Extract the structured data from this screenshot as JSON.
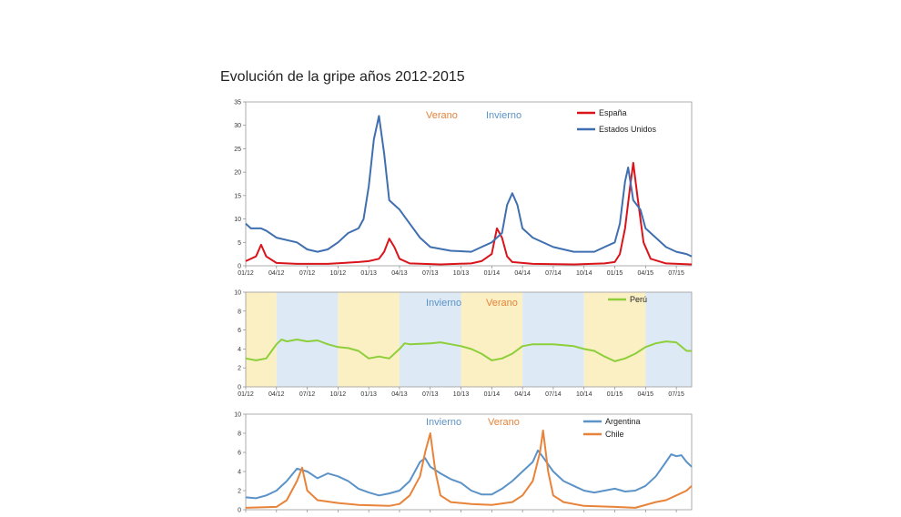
{
  "page": {
    "title": "Evolución de la gripe años 2012-2015"
  },
  "colors": {
    "espana": "#d9141b",
    "eeuu": "#3f6fb0",
    "peru": "#8dcf3a",
    "argentina": "#5b93c8",
    "chile": "#e8833a",
    "verano_text": "#e8833a",
    "invierno_text": "#5b93c8",
    "summer_band": "#fbefc4",
    "winter_band": "#dde9f5"
  },
  "chart_data": [
    {
      "type": "line",
      "ylim": [
        0,
        35
      ],
      "yticks": [
        0,
        5,
        10,
        15,
        20,
        25,
        30,
        35
      ],
      "x_tick_labels": [
        "01/12",
        "04/12",
        "07/12",
        "10/12",
        "01/13",
        "04/13",
        "07/13",
        "10/13",
        "01/14",
        "04/14",
        "07/14",
        "10/14",
        "01/15",
        "04/15",
        "07/15"
      ],
      "x_range_months": [
        0,
        43.5
      ],
      "annotations": [
        {
          "text": "Verano",
          "color_key": "verano_text"
        },
        {
          "text": "Invierno",
          "color_key": "invierno_text"
        }
      ],
      "series": [
        {
          "name": "España",
          "color_key": "espana",
          "points": [
            [
              0,
              1
            ],
            [
              1,
              2
            ],
            [
              1.5,
              4.5
            ],
            [
              2,
              2
            ],
            [
              3,
              0.6
            ],
            [
              5,
              0.4
            ],
            [
              8,
              0.4
            ],
            [
              11,
              0.8
            ],
            [
              12,
              1
            ],
            [
              13,
              1.5
            ],
            [
              13.5,
              3
            ],
            [
              14,
              5.8
            ],
            [
              14.5,
              4
            ],
            [
              15,
              1.5
            ],
            [
              16,
              0.5
            ],
            [
              19,
              0.3
            ],
            [
              22,
              0.5
            ],
            [
              23,
              1
            ],
            [
              24,
              2.5
            ],
            [
              24.5,
              8
            ],
            [
              25,
              6
            ],
            [
              25.5,
              2
            ],
            [
              26,
              0.8
            ],
            [
              28,
              0.4
            ],
            [
              32,
              0.3
            ],
            [
              35,
              0.5
            ],
            [
              36,
              0.8
            ],
            [
              36.5,
              2.5
            ],
            [
              37,
              8
            ],
            [
              37.5,
              17
            ],
            [
              37.8,
              22
            ],
            [
              38.2,
              15
            ],
            [
              38.8,
              5
            ],
            [
              39.5,
              1.5
            ],
            [
              41,
              0.5
            ],
            [
              43.5,
              0.3
            ]
          ]
        },
        {
          "name": "Estados Unidos",
          "color_key": "eeuu",
          "points": [
            [
              0,
              9
            ],
            [
              0.5,
              8
            ],
            [
              1.5,
              8
            ],
            [
              2,
              7.5
            ],
            [
              3,
              6
            ],
            [
              5,
              5
            ],
            [
              6,
              3.5
            ],
            [
              7,
              3
            ],
            [
              8,
              3.5
            ],
            [
              9,
              5
            ],
            [
              10,
              7
            ],
            [
              11,
              8
            ],
            [
              11.5,
              10
            ],
            [
              12,
              17
            ],
            [
              12.5,
              27
            ],
            [
              13,
              32
            ],
            [
              13.5,
              24
            ],
            [
              14,
              14
            ],
            [
              15,
              12
            ],
            [
              16,
              9
            ],
            [
              17,
              6
            ],
            [
              18,
              4
            ],
            [
              20,
              3.2
            ],
            [
              22,
              3
            ],
            [
              23,
              4
            ],
            [
              24,
              5
            ],
            [
              25,
              7
            ],
            [
              25.5,
              13
            ],
            [
              26,
              15.5
            ],
            [
              26.5,
              13
            ],
            [
              27,
              8
            ],
            [
              28,
              6
            ],
            [
              30,
              4
            ],
            [
              32,
              3
            ],
            [
              34,
              3
            ],
            [
              35,
              4
            ],
            [
              36,
              5
            ],
            [
              36.5,
              9
            ],
            [
              37,
              18
            ],
            [
              37.3,
              21
            ],
            [
              37.8,
              14
            ],
            [
              38.5,
              12
            ],
            [
              39,
              8
            ],
            [
              40,
              6
            ],
            [
              41,
              4
            ],
            [
              42,
              3
            ],
            [
              43,
              2.5
            ],
            [
              43.5,
              2
            ]
          ]
        }
      ],
      "legend": {
        "position": "top-right",
        "entries": [
          "España",
          "Estados Unidos"
        ]
      }
    },
    {
      "type": "line",
      "ylim": [
        0,
        10
      ],
      "yticks": [
        0,
        2,
        4,
        6,
        8,
        10
      ],
      "x_tick_labels": [
        "01/12",
        "04/12",
        "07/12",
        "10/12",
        "01/13",
        "04/13",
        "07/13",
        "10/13",
        "01/14",
        "04/14",
        "07/14",
        "10/14",
        "01/15",
        "04/15",
        "07/15"
      ],
      "x_range_months": [
        0,
        43.5
      ],
      "bands": [
        {
          "from": 0,
          "to": 3,
          "kind": "summer"
        },
        {
          "from": 3,
          "to": 9,
          "kind": "winter"
        },
        {
          "from": 9,
          "to": 15,
          "kind": "summer"
        },
        {
          "from": 15,
          "to": 21,
          "kind": "winter"
        },
        {
          "from": 21,
          "to": 27,
          "kind": "summer"
        },
        {
          "from": 27,
          "to": 33,
          "kind": "winter"
        },
        {
          "from": 33,
          "to": 39,
          "kind": "summer"
        },
        {
          "from": 39,
          "to": 43.5,
          "kind": "winter"
        }
      ],
      "annotations": [
        {
          "text": "Invierno",
          "color_key": "invierno_text"
        },
        {
          "text": "Verano",
          "color_key": "verano_text"
        }
      ],
      "series": [
        {
          "name": "Perú",
          "color_key": "peru",
          "points": [
            [
              0,
              3
            ],
            [
              1,
              2.8
            ],
            [
              2,
              3
            ],
            [
              3,
              4.5
            ],
            [
              3.5,
              5
            ],
            [
              4,
              4.8
            ],
            [
              5,
              5
            ],
            [
              6,
              4.8
            ],
            [
              7,
              4.9
            ],
            [
              8,
              4.5
            ],
            [
              9,
              4.2
            ],
            [
              10,
              4.1
            ],
            [
              11,
              3.8
            ],
            [
              12,
              3
            ],
            [
              13,
              3.2
            ],
            [
              14,
              3
            ],
            [
              15,
              4
            ],
            [
              15.5,
              4.6
            ],
            [
              16,
              4.5
            ],
            [
              18,
              4.6
            ],
            [
              19,
              4.7
            ],
            [
              20,
              4.5
            ],
            [
              21,
              4.3
            ],
            [
              22,
              4
            ],
            [
              23,
              3.5
            ],
            [
              24,
              2.8
            ],
            [
              25,
              3
            ],
            [
              26,
              3.5
            ],
            [
              27,
              4.3
            ],
            [
              28,
              4.5
            ],
            [
              30,
              4.5
            ],
            [
              32,
              4.3
            ],
            [
              33,
              4
            ],
            [
              34,
              3.8
            ],
            [
              35,
              3.2
            ],
            [
              36,
              2.7
            ],
            [
              37,
              3
            ],
            [
              38,
              3.5
            ],
            [
              39,
              4.2
            ],
            [
              40,
              4.6
            ],
            [
              41,
              4.8
            ],
            [
              42,
              4.7
            ],
            [
              43,
              3.8
            ],
            [
              43.5,
              3.8
            ]
          ]
        }
      ],
      "legend": {
        "position": "top-right",
        "entries": [
          "Perú"
        ]
      }
    },
    {
      "type": "line",
      "ylim": [
        0,
        10
      ],
      "yticks": [
        0,
        2,
        4,
        6,
        8,
        10
      ],
      "x_range_months": [
        0,
        43.5
      ],
      "annotations": [
        {
          "text": "Invierno",
          "color_key": "invierno_text"
        },
        {
          "text": "Verano",
          "color_key": "verano_text"
        }
      ],
      "series": [
        {
          "name": "Argentina",
          "color_key": "argentina",
          "points": [
            [
              0,
              1.3
            ],
            [
              1,
              1.2
            ],
            [
              2,
              1.5
            ],
            [
              3,
              2
            ],
            [
              4,
              3
            ],
            [
              5,
              4.3
            ],
            [
              6,
              4
            ],
            [
              7,
              3.3
            ],
            [
              8,
              3.8
            ],
            [
              9,
              3.5
            ],
            [
              10,
              3
            ],
            [
              11,
              2.2
            ],
            [
              12,
              1.8
            ],
            [
              13,
              1.5
            ],
            [
              14,
              1.7
            ],
            [
              15,
              2
            ],
            [
              16,
              3
            ],
            [
              17,
              5
            ],
            [
              17.5,
              5.4
            ],
            [
              18,
              4.5
            ],
            [
              19,
              3.8
            ],
            [
              20,
              3.2
            ],
            [
              21,
              2.8
            ],
            [
              22,
              2
            ],
            [
              23,
              1.6
            ],
            [
              24,
              1.6
            ],
            [
              25,
              2.2
            ],
            [
              26,
              3
            ],
            [
              27,
              4
            ],
            [
              28,
              5
            ],
            [
              28.5,
              6.2
            ],
            [
              29,
              5.5
            ],
            [
              30,
              4
            ],
            [
              31,
              3
            ],
            [
              32,
              2.5
            ],
            [
              33,
              2
            ],
            [
              34,
              1.8
            ],
            [
              35,
              2
            ],
            [
              36,
              2.2
            ],
            [
              37,
              1.9
            ],
            [
              38,
              2
            ],
            [
              39,
              2.5
            ],
            [
              40,
              3.5
            ],
            [
              41,
              5
            ],
            [
              41.5,
              5.8
            ],
            [
              42,
              5.6
            ],
            [
              42.5,
              5.7
            ],
            [
              43,
              5
            ],
            [
              43.5,
              4.5
            ]
          ]
        },
        {
          "name": "Chile",
          "color_key": "chile",
          "points": [
            [
              0,
              0.2
            ],
            [
              3,
              0.3
            ],
            [
              4,
              1
            ],
            [
              5,
              3
            ],
            [
              5.5,
              4.4
            ],
            [
              6,
              2
            ],
            [
              7,
              1
            ],
            [
              9,
              0.7
            ],
            [
              11,
              0.5
            ],
            [
              14,
              0.4
            ],
            [
              15,
              0.6
            ],
            [
              16,
              1.5
            ],
            [
              17,
              3.5
            ],
            [
              17.5,
              6
            ],
            [
              18,
              8
            ],
            [
              18.5,
              4
            ],
            [
              19,
              1.5
            ],
            [
              20,
              0.8
            ],
            [
              22,
              0.6
            ],
            [
              24,
              0.5
            ],
            [
              26,
              0.8
            ],
            [
              27,
              1.5
            ],
            [
              28,
              3
            ],
            [
              28.7,
              6
            ],
            [
              29,
              8.3
            ],
            [
              29.5,
              4
            ],
            [
              30,
              1.5
            ],
            [
              31,
              0.8
            ],
            [
              33,
              0.4
            ],
            [
              36,
              0.3
            ],
            [
              38,
              0.2
            ],
            [
              40,
              0.8
            ],
            [
              41,
              1
            ],
            [
              42,
              1.5
            ],
            [
              43,
              2
            ],
            [
              43.5,
              2.5
            ]
          ]
        }
      ],
      "legend": {
        "position": "top-right",
        "entries": [
          "Argentina",
          "Chile"
        ]
      }
    }
  ]
}
